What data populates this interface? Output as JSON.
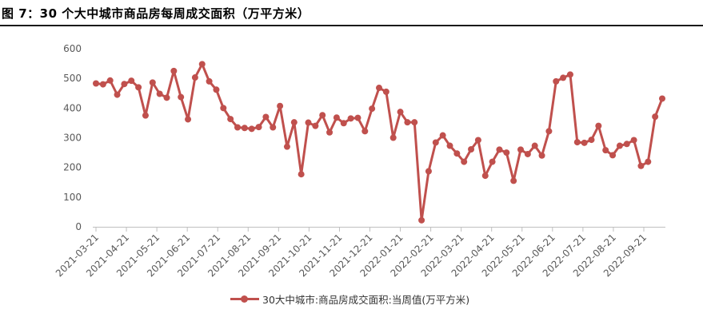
{
  "figure": {
    "title": "图 7：30 个大中城市商品房每周成交面积（万平方米）"
  },
  "chart_data": {
    "type": "line",
    "xlabel": "",
    "ylabel": "",
    "ylim": [
      0,
      600
    ],
    "yticks": [
      0,
      100,
      200,
      300,
      400,
      500,
      600
    ],
    "grid": false,
    "legend_position": "bottom",
    "line_color": "#c0504d",
    "x_tick_labels": [
      "2021-03-21",
      "2021-04-21",
      "2021-05-21",
      "2021-06-21",
      "2021-07-21",
      "2021-08-21",
      "2021-09-21",
      "2021-10-21",
      "2021-11-21",
      "2021-12-21",
      "2022-01-21",
      "2022-02-21",
      "2022-03-21",
      "2022-04-21",
      "2022-05-21",
      "2022-06-21",
      "2022-07-21",
      "2022-08-21",
      "2022-09-21"
    ],
    "series": [
      {
        "name": "30大中城市:商品房成交面积:当周值(万平方米)",
        "values": [
          483,
          480,
          493,
          445,
          481,
          492,
          470,
          375,
          486,
          448,
          435,
          525,
          437,
          362,
          503,
          548,
          490,
          462,
          400,
          363,
          335,
          333,
          330,
          336,
          370,
          335,
          407,
          270,
          352,
          177,
          351,
          340,
          376,
          318,
          368,
          349,
          365,
          367,
          322,
          398,
          468,
          455,
          300,
          387,
          352,
          352,
          22,
          187,
          284,
          308,
          273,
          247,
          219,
          261,
          292,
          172,
          219,
          260,
          250,
          155,
          260,
          245,
          273,
          240,
          322,
          490,
          502,
          513,
          285,
          283,
          293,
          340,
          258,
          241,
          273,
          279,
          292,
          205,
          219,
          371,
          432
        ]
      }
    ]
  }
}
